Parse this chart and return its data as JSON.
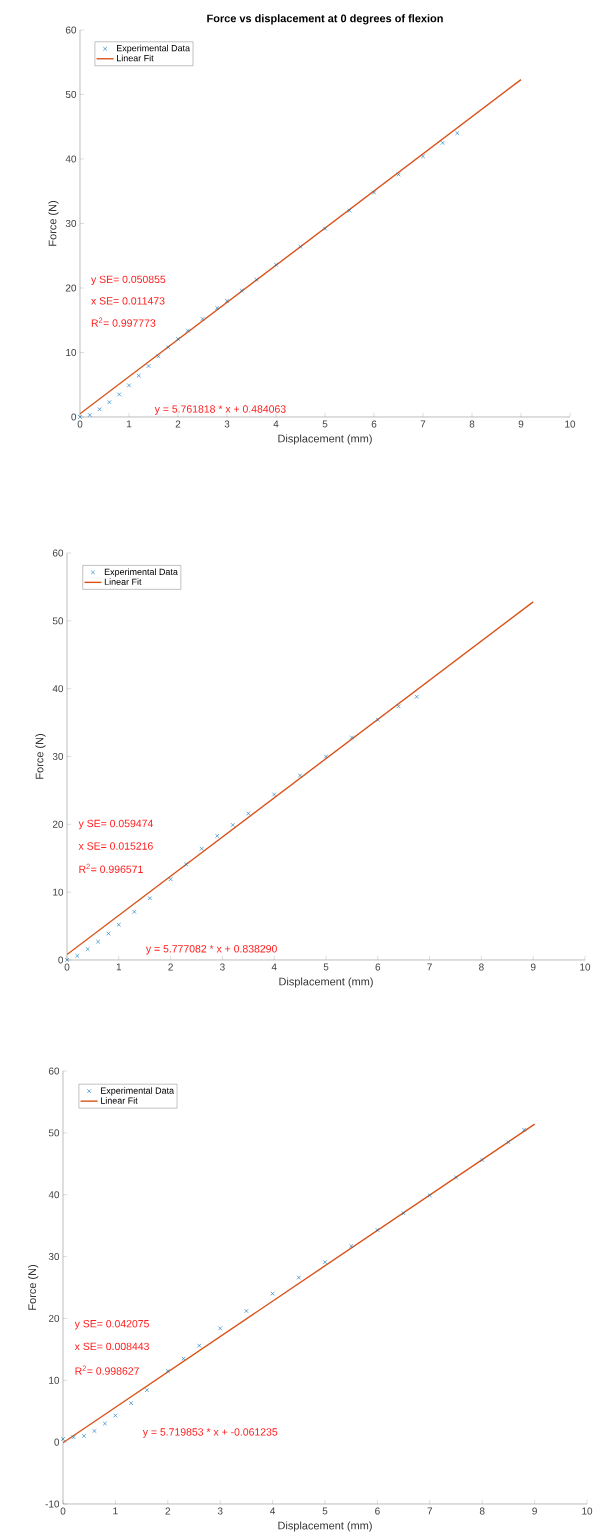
{
  "chart_data": [
    {
      "type": "scatter",
      "title": "Force vs displacement at 0 degrees of flexion",
      "xlabel": "Displacement (mm)",
      "ylabel": "Force (N)",
      "xlim": [
        0,
        10
      ],
      "ylim": [
        0,
        60
      ],
      "xticks": [
        0,
        1,
        2,
        3,
        4,
        5,
        6,
        7,
        8,
        9,
        10
      ],
      "yticks": [
        0,
        10,
        20,
        30,
        40,
        50,
        60
      ],
      "legend": "top left",
      "annotations": [
        "y SE= 0.050855",
        "x SE= 0.011473",
        "R$^{2}$= 0.997773",
        "y = 5.761818 * x + 0.484063"
      ],
      "series": [
        {
          "type": "scatter",
          "name": "Experimental Data",
          "color": "#0072bd",
          "marker": "cross",
          "x": [
            0,
            0.2,
            0.4,
            0.6,
            0.8,
            1.0,
            1.2,
            1.4,
            1.6,
            1.8,
            2.0,
            2.2,
            2.5,
            2.8,
            3.0,
            3.3,
            3.6,
            4.0,
            4.5,
            5.0,
            5.5,
            6.0,
            6.5,
            7.0,
            7.4,
            7.7
          ],
          "values": [
            0,
            0.3,
            1.2,
            2.3,
            3.5,
            4.9,
            6.4,
            7.9,
            9.4,
            10.8,
            12.1,
            13.4,
            15.2,
            16.9,
            18.0,
            19.6,
            21.3,
            23.6,
            26.4,
            29.2,
            32.0,
            34.8,
            37.6,
            40.4,
            42.5,
            44.0
          ]
        },
        {
          "type": "line",
          "name": "Linear Fit",
          "color": "#d95319",
          "marker": "none",
          "x": [
            0,
            9
          ],
          "values": [
            0.5,
            52.3
          ]
        }
      ]
    },
    {
      "type": "scatter",
      "xlabel": "Displacement (mm)",
      "ylabel": "Force (N)",
      "xlim": [
        0,
        10
      ],
      "ylim": [
        0,
        60
      ],
      "xticks": [
        0,
        1,
        2,
        3,
        4,
        5,
        6,
        7,
        8,
        9,
        10
      ],
      "yticks": [
        0,
        10,
        20,
        30,
        40,
        50,
        60
      ],
      "legend": "top left",
      "annotations": [
        "y SE= 0.059474",
        "x SE= 0.015216",
        "R$^{2}$= 0.996571",
        "y = 5.777082 * x + 0.838290"
      ],
      "series": [
        {
          "type": "scatter",
          "name": "Experimental Data",
          "color": "#0072bd",
          "marker": "cross",
          "x": [
            0,
            0.2,
            0.4,
            0.6,
            0.8,
            1.0,
            1.3,
            1.6,
            2.0,
            2.3,
            2.6,
            2.9,
            3.2,
            3.5,
            4.0,
            4.5,
            5.0,
            5.5,
            6.0,
            6.4,
            6.75
          ],
          "values": [
            0,
            0.6,
            1.6,
            2.7,
            3.9,
            5.2,
            7.1,
            9.1,
            11.9,
            14.1,
            16.4,
            18.3,
            19.9,
            21.6,
            24.4,
            27.2,
            30.0,
            32.8,
            35.4,
            37.4,
            38.8
          ]
        },
        {
          "type": "line",
          "name": "Linear Fit",
          "color": "#d95319",
          "marker": "none",
          "x": [
            0,
            9
          ],
          "values": [
            0.8,
            52.8
          ]
        }
      ]
    },
    {
      "type": "scatter",
      "xlabel": "Displacement (mm)",
      "ylabel": "Force (N)",
      "xlim": [
        0,
        10
      ],
      "ylim": [
        -10,
        60
      ],
      "xticks": [
        0,
        1,
        2,
        3,
        4,
        5,
        6,
        7,
        8,
        9,
        10
      ],
      "yticks": [
        -10,
        0,
        10,
        20,
        30,
        40,
        50,
        60
      ],
      "legend": "top left",
      "annotations": [
        "y SE= 0.042075",
        "x SE= 0.008443",
        "R$^{2}$= 0.998627",
        "y = 5.719853 * x + -0.061235"
      ],
      "series": [
        {
          "type": "scatter",
          "name": "Experimental Data",
          "color": "#0072bd",
          "marker": "cross",
          "x": [
            0,
            0.2,
            0.4,
            0.6,
            0.8,
            1.0,
            1.3,
            1.6,
            2.0,
            2.3,
            2.6,
            3.0,
            3.5,
            4.0,
            4.5,
            5.0,
            5.5,
            6.0,
            6.5,
            7.0,
            7.5,
            8.0,
            8.5,
            8.8
          ],
          "values": [
            0.5,
            0.8,
            1.0,
            1.8,
            3.0,
            4.3,
            6.3,
            8.4,
            11.5,
            13.5,
            15.6,
            18.4,
            21.2,
            24.0,
            26.6,
            29.1,
            31.7,
            34.3,
            37.0,
            39.9,
            42.8,
            45.6,
            48.5,
            50.5
          ]
        },
        {
          "type": "line",
          "name": "Linear Fit",
          "color": "#d95319",
          "marker": "none",
          "x": [
            0,
            9
          ],
          "values": [
            -0.1,
            51.4
          ]
        }
      ]
    }
  ]
}
